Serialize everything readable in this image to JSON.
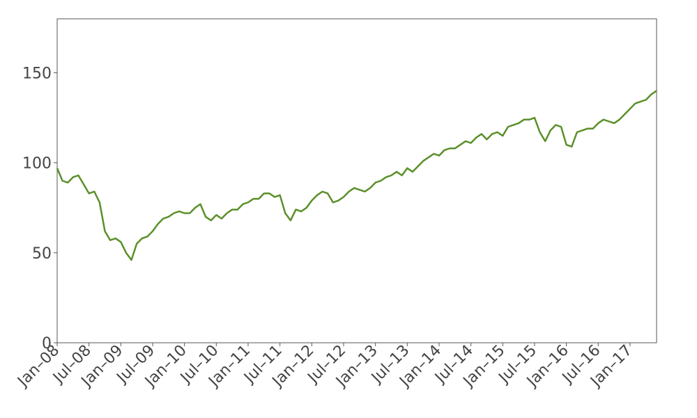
{
  "chart_data": {
    "type": "line",
    "x": [
      "2008-01",
      "2008-02",
      "2008-03",
      "2008-04",
      "2008-05",
      "2008-06",
      "2008-07",
      "2008-08",
      "2008-09",
      "2008-10",
      "2008-11",
      "2008-12",
      "2009-01",
      "2009-02",
      "2009-03",
      "2009-04",
      "2009-05",
      "2009-06",
      "2009-07",
      "2009-08",
      "2009-09",
      "2009-10",
      "2009-11",
      "2009-12",
      "2010-01",
      "2010-02",
      "2010-03",
      "2010-04",
      "2010-05",
      "2010-06",
      "2010-07",
      "2010-08",
      "2010-09",
      "2010-10",
      "2010-11",
      "2010-12",
      "2011-01",
      "2011-02",
      "2011-03",
      "2011-04",
      "2011-05",
      "2011-06",
      "2011-07",
      "2011-08",
      "2011-09",
      "2011-10",
      "2011-11",
      "2011-12",
      "2012-01",
      "2012-02",
      "2012-03",
      "2012-04",
      "2012-05",
      "2012-06",
      "2012-07",
      "2012-08",
      "2012-09",
      "2012-10",
      "2012-11",
      "2012-12",
      "2013-01",
      "2013-02",
      "2013-03",
      "2013-04",
      "2013-05",
      "2013-06",
      "2013-07",
      "2013-08",
      "2013-09",
      "2013-10",
      "2013-11",
      "2013-12",
      "2014-01",
      "2014-02",
      "2014-03",
      "2014-04",
      "2014-05",
      "2014-06",
      "2014-07",
      "2014-08",
      "2014-09",
      "2014-10",
      "2014-11",
      "2014-12",
      "2015-01",
      "2015-02",
      "2015-03",
      "2015-04",
      "2015-05",
      "2015-06",
      "2015-07",
      "2015-08",
      "2015-09",
      "2015-10",
      "2015-11",
      "2015-12",
      "2016-01",
      "2016-02",
      "2016-03",
      "2016-04",
      "2016-05",
      "2016-06",
      "2016-07",
      "2016-08",
      "2016-09",
      "2016-10",
      "2016-11",
      "2016-12",
      "2017-01",
      "2017-02",
      "2017-03",
      "2017-04",
      "2017-05",
      "2017-06"
    ],
    "series": [
      {
        "color": "#5a8f29",
        "values": [
          97,
          90,
          89,
          92,
          93,
          88,
          83,
          84,
          78,
          62,
          57,
          58,
          56,
          50,
          46,
          55,
          58,
          59,
          62,
          66,
          69,
          70,
          72,
          73,
          72,
          72,
          75,
          77,
          70,
          68,
          71,
          69,
          72,
          74,
          74,
          77,
          78,
          80,
          80,
          83,
          83,
          81,
          82,
          72,
          68,
          74,
          73,
          75,
          79,
          82,
          84,
          83,
          78,
          79,
          81,
          84,
          86,
          85,
          84,
          86,
          89,
          90,
          92,
          93,
          95,
          93,
          97,
          95,
          98,
          101,
          103,
          105,
          104,
          107,
          108,
          108,
          110,
          112,
          111,
          114,
          116,
          113,
          116,
          117,
          115,
          120,
          121,
          122,
          124,
          124,
          125,
          117,
          112,
          118,
          121,
          120,
          110,
          109,
          117,
          118,
          119,
          119,
          122,
          124,
          123,
          122,
          124,
          127,
          130,
          133,
          134,
          135,
          138,
          140
        ]
      }
    ],
    "xlim": [
      "2008-01",
      "2017-06"
    ],
    "xticks": [
      {
        "value": "2008-01",
        "label": "Jan–08"
      },
      {
        "value": "2008-07",
        "label": "Jul–08"
      },
      {
        "value": "2009-01",
        "label": "Jan–09"
      },
      {
        "value": "2009-07",
        "label": "Jul–09"
      },
      {
        "value": "2010-01",
        "label": "Jan–10"
      },
      {
        "value": "2010-07",
        "label": "Jul–10"
      },
      {
        "value": "2011-01",
        "label": "Jan–11"
      },
      {
        "value": "2011-07",
        "label": "Jul–11"
      },
      {
        "value": "2012-01",
        "label": "Jan–12"
      },
      {
        "value": "2012-07",
        "label": "Jul–12"
      },
      {
        "value": "2013-01",
        "label": "Jan–13"
      },
      {
        "value": "2013-07",
        "label": "Jul–13"
      },
      {
        "value": "2014-01",
        "label": "Jan–14"
      },
      {
        "value": "2014-07",
        "label": "Jul–14"
      },
      {
        "value": "2015-01",
        "label": "Jan–15"
      },
      {
        "value": "2015-07",
        "label": "Jul–15"
      },
      {
        "value": "2016-01",
        "label": "Jan–16"
      },
      {
        "value": "2016-07",
        "label": "Jul–16"
      },
      {
        "value": "2017-01",
        "label": "Jan–17"
      }
    ],
    "ylim": [
      0,
      180
    ],
    "yticks": [
      0,
      50,
      100,
      150
    ],
    "grid": false
  }
}
